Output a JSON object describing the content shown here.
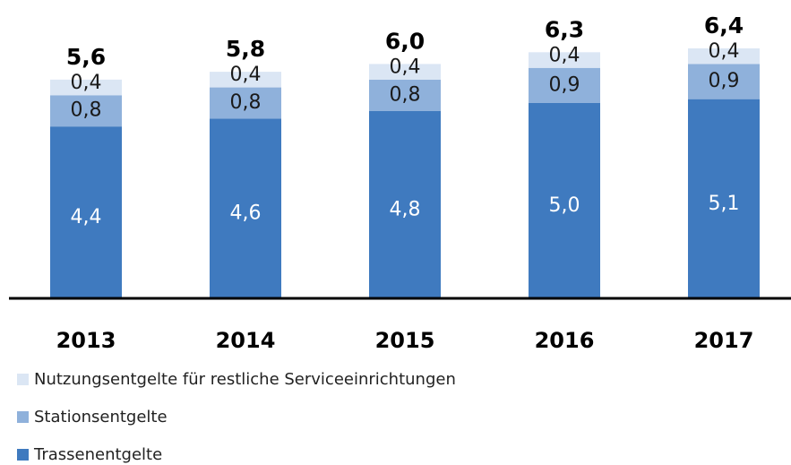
{
  "chart_data": {
    "type": "stacked_bar",
    "categories": [
      "2013",
      "2014",
      "2015",
      "2016",
      "2017"
    ],
    "series": [
      {
        "name": "Trassenentgelte",
        "color": "#3f7abf",
        "values": [
          4.4,
          4.6,
          4.8,
          5.0,
          5.1
        ],
        "value_labels": [
          "4,4",
          "4,6",
          "4,8",
          "5,0",
          "5,1"
        ]
      },
      {
        "name": "Stationsentgelte",
        "color": "#8fb1db",
        "values": [
          0.8,
          0.8,
          0.8,
          0.9,
          0.9
        ],
        "value_labels": [
          "0,8",
          "0,8",
          "0,8",
          "0,9",
          "0,9"
        ]
      },
      {
        "name": "Nutzungsentgelte für restliche Serviceeinrichtungen",
        "color": "#dbe6f4",
        "values": [
          0.4,
          0.4,
          0.4,
          0.4,
          0.4
        ],
        "value_labels": [
          "0,4",
          "0,4",
          "0,4",
          "0,4",
          "0,4"
        ]
      }
    ],
    "totals": [
      5.6,
      5.8,
      6.0,
      6.3,
      6.4
    ],
    "total_labels": [
      "5,6",
      "5,8",
      "6,0",
      "6,3",
      "6,4"
    ]
  }
}
